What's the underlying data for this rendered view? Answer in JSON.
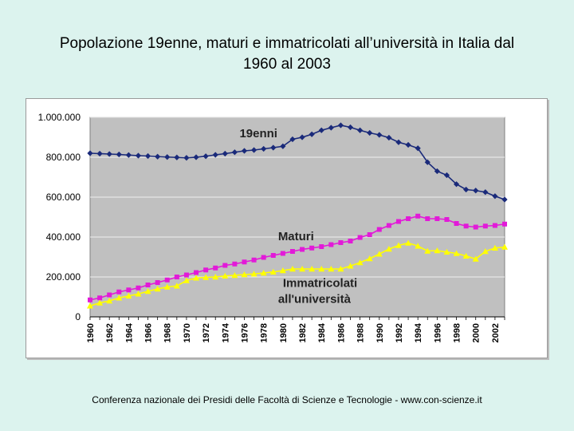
{
  "page": {
    "title_line1": "Popolazione 19enne, maturi e immatricolati all’università in Italia dal",
    "title_line2": "1960 al 2003",
    "footer": "Conferenza nazionale dei Presidi delle Facoltà di Scienze e Tecnologie  -   www.con-scienze.it"
  },
  "chart_data": {
    "type": "line",
    "title": "Popolazione 19enne, maturi e immatricolati all’università in Italia dal 1960 al 2003",
    "xlabel": "",
    "ylabel": "",
    "x": [
      1960,
      1961,
      1962,
      1963,
      1964,
      1965,
      1966,
      1967,
      1968,
      1969,
      1970,
      1971,
      1972,
      1973,
      1974,
      1975,
      1976,
      1977,
      1978,
      1979,
      1980,
      1981,
      1982,
      1983,
      1984,
      1985,
      1986,
      1987,
      1988,
      1989,
      1990,
      1991,
      1992,
      1993,
      1994,
      1995,
      1996,
      1997,
      1998,
      1999,
      2000,
      2001,
      2002,
      2003
    ],
    "x_tick_labels": [
      "1960",
      "1962",
      "1964",
      "1966",
      "1968",
      "1970",
      "1972",
      "1974",
      "1976",
      "1978",
      "1980",
      "1982",
      "1984",
      "1986",
      "1988",
      "1990",
      "1992",
      "1994",
      "1996",
      "1998",
      "2000",
      "2002"
    ],
    "x_tick_values": [
      1960,
      1962,
      1964,
      1966,
      1968,
      1970,
      1972,
      1974,
      1976,
      1978,
      1980,
      1982,
      1984,
      1986,
      1988,
      1990,
      1992,
      1994,
      1996,
      1998,
      2000,
      2002
    ],
    "y_tick_labels": [
      "0",
      "200.000",
      "400.000",
      "600.000",
      "800.000",
      "1.000.000"
    ],
    "y_tick_values": [
      0,
      200000,
      400000,
      600000,
      800000,
      1000000
    ],
    "ylim": [
      0,
      1000000
    ],
    "xlim": [
      1960,
      2003
    ],
    "grid": true,
    "plot_background": "#c0c0c0",
    "series": [
      {
        "name": "19enni",
        "label_text": "19enni",
        "color": "#1a2a7a",
        "marker": "diamond",
        "values": [
          820000,
          818000,
          816000,
          814000,
          811000,
          808000,
          806000,
          803000,
          801000,
          799000,
          797000,
          800000,
          805000,
          812000,
          818000,
          825000,
          832000,
          836000,
          842000,
          848000,
          855000,
          890000,
          900000,
          915000,
          935000,
          948000,
          960000,
          950000,
          935000,
          922000,
          912000,
          898000,
          875000,
          862000,
          845000,
          775000,
          730000,
          710000,
          665000,
          638000,
          633000,
          625000,
          605000,
          588000
        ]
      },
      {
        "name": "Maturi",
        "label_text": "Maturi",
        "color": "#e21ad8",
        "marker": "square",
        "values": [
          85000,
          95000,
          110000,
          125000,
          135000,
          145000,
          160000,
          172000,
          185000,
          200000,
          210000,
          222000,
          235000,
          245000,
          258000,
          265000,
          275000,
          285000,
          298000,
          308000,
          318000,
          328000,
          338000,
          345000,
          352000,
          362000,
          372000,
          380000,
          398000,
          412000,
          438000,
          458000,
          478000,
          492000,
          505000,
          492000,
          492000,
          488000,
          468000,
          455000,
          450000,
          455000,
          458000,
          465000
        ]
      },
      {
        "name": "Immatricolati all'università",
        "label_text_line1": "Immatricolati",
        "label_text_line2": "all'università",
        "color": "#ffff00",
        "marker": "triangle",
        "values": [
          55000,
          70000,
          80000,
          95000,
          105000,
          115000,
          128000,
          140000,
          150000,
          155000,
          182000,
          195000,
          198000,
          200000,
          205000,
          208000,
          212000,
          215000,
          220000,
          225000,
          232000,
          240000,
          240000,
          240000,
          240000,
          240000,
          240000,
          255000,
          272000,
          292000,
          315000,
          340000,
          358000,
          370000,
          355000,
          330000,
          332000,
          325000,
          318000,
          305000,
          290000,
          328000,
          345000,
          350000
        ]
      }
    ]
  }
}
